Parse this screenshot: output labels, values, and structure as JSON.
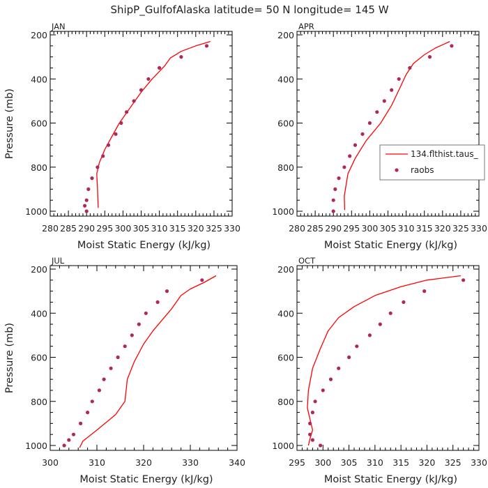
{
  "figure": {
    "title": "ShipP_GulfofAlaska   latitude= 50 N longitude= 145 W"
  },
  "colors": {
    "model": "#ff0000",
    "raobs": "#b0285a",
    "axis": "#000000"
  },
  "chart_data": [
    {
      "type": "line",
      "panel": "JAN",
      "xlabel": "Moist Static Energy (kJ/kg)",
      "ylabel": "Pressure (mb)",
      "xlim": [
        280,
        330
      ],
      "ylim": [
        1000,
        200
      ],
      "y_inverted": true,
      "xticks": [
        "280",
        "285",
        "290",
        "295",
        "300",
        "305",
        "310",
        "315",
        "320",
        "325",
        "330"
      ],
      "yticks": [
        "200",
        "400",
        "600",
        "800",
        "1000"
      ],
      "grid": false,
      "series": [
        {
          "name": "134.flthist.taus_",
          "kind": "line",
          "x": [
            324,
            320,
            316,
            313,
            311.5,
            308,
            305,
            302,
            299,
            297,
            295,
            293.5,
            292.8,
            293,
            293.2
          ],
          "y": [
            230,
            250,
            275,
            305,
            340,
            400,
            460,
            530,
            600,
            660,
            720,
            780,
            830,
            900,
            985
          ]
        },
        {
          "name": "raobs",
          "kind": "scatter",
          "x": [
            323,
            316,
            310,
            307,
            305,
            303,
            301,
            299.5,
            298,
            296,
            294.5,
            293,
            291.5,
            290.5,
            290,
            289.5,
            290
          ],
          "y": [
            250,
            300,
            350,
            400,
            450,
            500,
            550,
            600,
            650,
            700,
            750,
            800,
            850,
            900,
            950,
            975,
            1000
          ]
        }
      ]
    },
    {
      "type": "line",
      "panel": "APR",
      "xlabel": "Moist Static Energy (kJ/kg)",
      "ylabel": "",
      "xlim": [
        280,
        330
      ],
      "ylim": [
        1000,
        200
      ],
      "y_inverted": true,
      "xticks": [
        "280",
        "285",
        "290",
        "295",
        "300",
        "305",
        "310",
        "315",
        "320",
        "325",
        "330"
      ],
      "yticks": [
        "200",
        "400",
        "600",
        "800",
        "1000"
      ],
      "grid": false,
      "legend": {
        "position": "right",
        "entries": [
          "134.flthist.taus_",
          "raobs"
        ]
      },
      "series": [
        {
          "name": "134.flthist.taus_",
          "kind": "line",
          "x": [
            322,
            318,
            315,
            312,
            310,
            308,
            306,
            303,
            299,
            296,
            294,
            293.5,
            293,
            293.1
          ],
          "y": [
            230,
            260,
            290,
            330,
            380,
            450,
            520,
            600,
            680,
            760,
            830,
            880,
            930,
            995
          ]
        },
        {
          "name": "raobs",
          "kind": "scatter",
          "x": [
            322.5,
            316.5,
            311,
            308,
            306,
            304,
            302,
            300,
            298,
            296,
            294.5,
            293,
            291.5,
            290.5,
            290,
            290
          ],
          "y": [
            250,
            300,
            350,
            400,
            450,
            500,
            550,
            600,
            650,
            700,
            750,
            800,
            850,
            900,
            950,
            1000
          ]
        }
      ]
    },
    {
      "type": "line",
      "panel": "JUL",
      "xlabel": "Moist Static Energy (kJ/kg)",
      "ylabel": "Pressure (mb)",
      "xlim": [
        300,
        340
      ],
      "ylim": [
        1000,
        200
      ],
      "y_inverted": true,
      "xticks": [
        "300",
        "310",
        "320",
        "330",
        "340"
      ],
      "yticks": [
        "200",
        "400",
        "600",
        "800",
        "1000"
      ],
      "grid": false,
      "series": [
        {
          "name": "134.flthist.taus_",
          "kind": "line",
          "x": [
            335.5,
            333,
            330,
            328,
            326,
            324,
            322,
            320,
            318,
            316.5,
            316,
            314,
            310,
            307,
            306.3
          ],
          "y": [
            230,
            260,
            290,
            320,
            380,
            430,
            480,
            540,
            620,
            700,
            800,
            860,
            930,
            980,
            1010
          ]
        },
        {
          "name": "raobs",
          "kind": "scatter",
          "x": [
            332.5,
            325,
            323,
            320.5,
            319,
            317.5,
            316,
            314.5,
            313,
            311.5,
            310.5,
            309,
            308,
            306.5,
            305,
            304,
            303
          ],
          "y": [
            250,
            300,
            350,
            400,
            450,
            500,
            550,
            600,
            650,
            700,
            750,
            800,
            850,
            900,
            950,
            975,
            1000
          ]
        }
      ]
    },
    {
      "type": "line",
      "panel": "OCT",
      "xlabel": "Moist Static Energy (kJ/kg)",
      "ylabel": "",
      "xlim": [
        295,
        330
      ],
      "ylim": [
        1000,
        200
      ],
      "y_inverted": true,
      "xticks": [
        "295",
        "300",
        "305",
        "310",
        "315",
        "320",
        "325",
        "330"
      ],
      "yticks": [
        "200",
        "400",
        "600",
        "800",
        "1000"
      ],
      "grid": false,
      "series": [
        {
          "name": "134.flthist.taus_",
          "kind": "line",
          "x": [
            326.5,
            320,
            315,
            310,
            306,
            303,
            301,
            299.5,
            298,
            297.2,
            297,
            297.5,
            298,
            297.5,
            297.2
          ],
          "y": [
            230,
            250,
            280,
            320,
            370,
            420,
            480,
            560,
            650,
            750,
            830,
            880,
            930,
            970,
            1000
          ]
        },
        {
          "name": "raobs",
          "kind": "scatter",
          "x": [
            327,
            319.5,
            315.5,
            313,
            311,
            309,
            306.5,
            305,
            303,
            301.5,
            300,
            298.5,
            298,
            297.5,
            297.5,
            298,
            299.5
          ],
          "y": [
            250,
            300,
            350,
            400,
            450,
            500,
            550,
            600,
            650,
            700,
            750,
            800,
            850,
            900,
            950,
            975,
            1000
          ]
        }
      ]
    }
  ]
}
